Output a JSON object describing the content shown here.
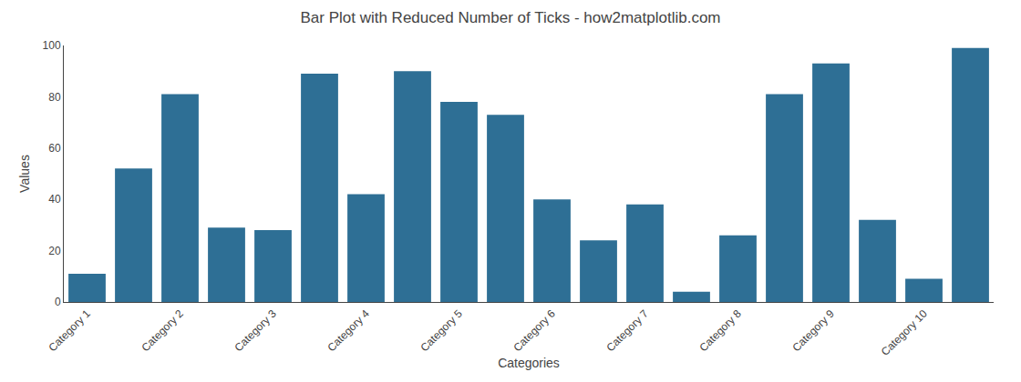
{
  "chart_data": {
    "type": "bar",
    "title": "Bar Plot with Reduced Number of Ticks - how2matplotlib.com",
    "xlabel": "Categories",
    "ylabel": "Values",
    "categories": [
      "Category 1",
      null,
      "Category 2",
      null,
      "Category 3",
      null,
      "Category 4",
      null,
      "Category 5",
      null,
      "Category 6",
      null,
      "Category 7",
      null,
      "Category 8",
      null,
      "Category 9",
      null,
      "Category 10",
      null
    ],
    "values": [
      11,
      52,
      81,
      29,
      28,
      89,
      42,
      90,
      78,
      73,
      40,
      24,
      38,
      4,
      26,
      81,
      93,
      32,
      9,
      99
    ],
    "color": "#2e6f95",
    "ylim": [
      0,
      100
    ],
    "yticks": [
      0,
      20,
      40,
      60,
      80,
      100
    ],
    "grid": false
  }
}
